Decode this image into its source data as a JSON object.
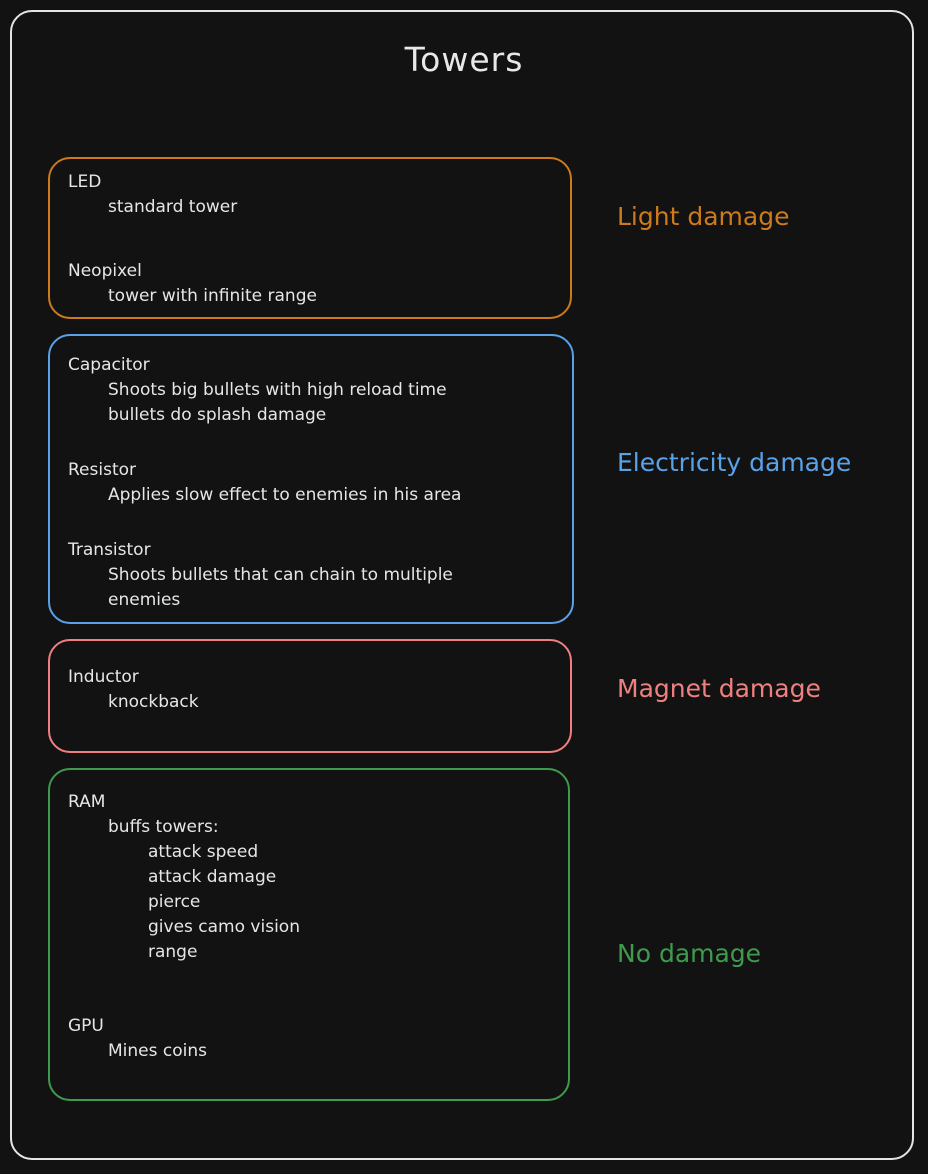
{
  "title": "Towers",
  "colors": {
    "light": "#cc7a1c",
    "electricity": "#5aa2e8",
    "magnet": "#f08080",
    "none": "#3e9b4e",
    "frame": "#e4e4e4",
    "background": "#121212"
  },
  "groups": {
    "light": {
      "label": "Light damage",
      "towers": [
        {
          "name": "LED",
          "lines": [
            "standard tower"
          ]
        },
        {
          "name": "Neopixel",
          "lines": [
            "tower with infinite range"
          ]
        }
      ]
    },
    "electricity": {
      "label": "Electricity damage",
      "towers": [
        {
          "name": "Capacitor",
          "lines": [
            "Shoots big bullets with high reload time",
            "bullets do splash damage"
          ]
        },
        {
          "name": "Resistor",
          "lines": [
            "Applies slow effect to enemies in his area"
          ]
        },
        {
          "name": "Transistor",
          "lines": [
            "Shoots bullets that can chain to multiple",
            "enemies"
          ]
        }
      ]
    },
    "magnet": {
      "label": "Magnet damage",
      "towers": [
        {
          "name": "Inductor",
          "lines": [
            "knockback"
          ]
        }
      ]
    },
    "none": {
      "label": "No damage",
      "towers": [
        {
          "name": "RAM",
          "lines": [
            "buffs towers:"
          ],
          "sublines": [
            "attack speed",
            "attack damage",
            "pierce",
            "gives camo vision",
            "range"
          ]
        },
        {
          "name": "GPU",
          "lines": [
            "Mines coins"
          ]
        }
      ]
    }
  }
}
